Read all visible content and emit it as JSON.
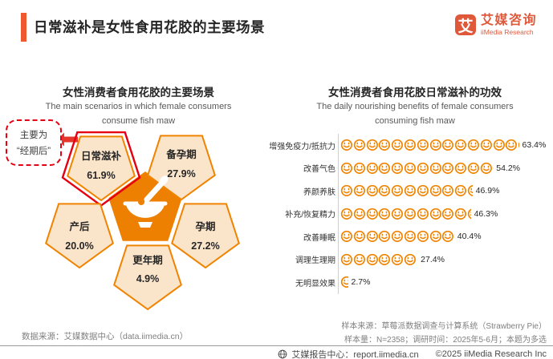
{
  "header": {
    "title": "日常滋补是女性食用花胶的主要场景",
    "logo": {
      "glyph": "艾",
      "brand_cn": "艾媒咨询",
      "brand_en": "iiMedia Research"
    }
  },
  "colors": {
    "accent_orange": "#F08300",
    "center_pentagon_orange": "#ED8000",
    "pentagon_fill": "#FAE5CB",
    "highlight_red": "#E60012",
    "brand_red_orange": "#E0583A"
  },
  "chart_data": [
    {
      "type": "pentagon-flower-pictogram",
      "title": "女性消费者食用花胶的主要场景",
      "subtitle_line1": "The main scenarios in which female consumers",
      "subtitle_line2": "consume fish maw",
      "categories": [
        "日常滋补",
        "备孕期",
        "产后",
        "孕期",
        "更年期"
      ],
      "values": [
        61.9,
        27.9,
        20.0,
        27.2,
        4.9
      ],
      "value_suffix": "%",
      "highlight_category": "日常滋补",
      "callout": {
        "line1": "主要为",
        "line2": "“经期后”"
      },
      "center_icon": "bowl-with-spoon"
    },
    {
      "type": "pictogram-bar-smileys",
      "title": "女性消费者食用花胶日常滋补的功效",
      "subtitle_line1": "The daily nourishing benefits of female consumers",
      "subtitle_line2": "consuming fish maw",
      "categories": [
        "增强免疫力/抵抗力",
        "改善气色",
        "养颜养肤",
        "补充/恢复精力",
        "改善睡眠",
        "调理生理期",
        "无明显效果"
      ],
      "values": [
        63.4,
        54.2,
        46.9,
        46.3,
        40.4,
        27.4,
        2.7
      ],
      "value_suffix": "%",
      "icon": "smiley-face",
      "icon_unit_percent": 4.5,
      "legend_position": "none",
      "grid": false
    }
  ],
  "footer": {
    "data_source": "数据来源：艾媒数据中心（data.iimedia.cn）",
    "sample_source": "样本来源：草莓派数据调查与计算系统（Strawberry Pie）",
    "sample_info": "样本量：N=2358；调研时间：2025年5-6月；本题为多选",
    "report_center": "艾媒报告中心：report.iimedia.cn",
    "copyright": "©2025  iiMedia Research  Inc"
  }
}
